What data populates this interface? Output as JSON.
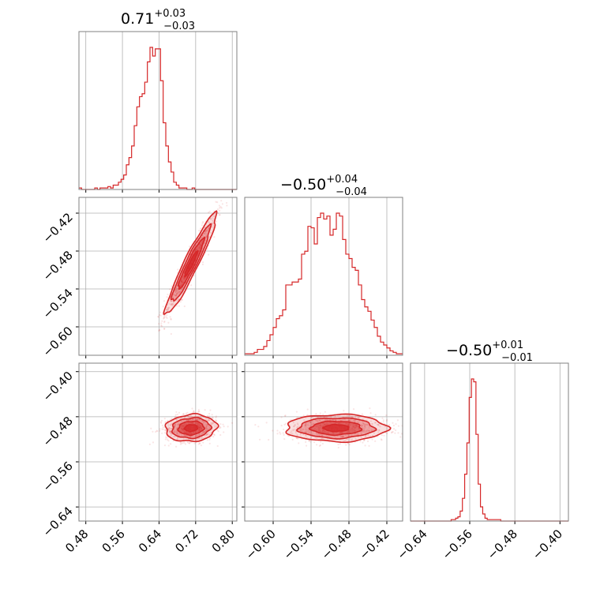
{
  "chart_data": {
    "type": "corner",
    "color": "#d62728",
    "grid": true,
    "parameters": [
      {
        "median": 0.71,
        "err_plus": 0.03,
        "err_minus": 0.03,
        "title_main": "0.71",
        "title_sup": "+0.03",
        "title_sub": "−0.03",
        "range": [
          0.465,
          0.81
        ],
        "ticks": [
          0.48,
          0.56,
          0.64,
          0.72,
          0.8
        ],
        "tick_labels": [
          "0.48",
          "0.56",
          "0.64",
          "0.72",
          "0.80"
        ],
        "histogram": {
          "start": 0.465,
          "bin_width": 0.00575,
          "heights": [
            0.01,
            0,
            0,
            0,
            0,
            0,
            0.01,
            0,
            0.01,
            0.01,
            0.01,
            0.02,
            0.01,
            0.03,
            0.03,
            0.05,
            0.07,
            0.1,
            0.17,
            0.22,
            0.3,
            0.44,
            0.57,
            0.64,
            0.66,
            0.74,
            0.88,
            0.98,
            0.92,
            0.97,
            0.97,
            0.75,
            0.46,
            0.3,
            0.19,
            0.12,
            0.05,
            0.03,
            0.01,
            0.01,
            0.01,
            0,
            0,
            0.01,
            0,
            0,
            0,
            0,
            0,
            0,
            0,
            0,
            0,
            0,
            0,
            0,
            0,
            0,
            0,
            0
          ]
        }
      },
      {
        "median": -0.5,
        "err_plus": 0.04,
        "err_minus": 0.04,
        "title_main": "−0.50",
        "title_sup": "+0.04",
        "title_sub": "−0.04",
        "range": [
          -0.645,
          -0.395
        ],
        "ticks": [
          -0.6,
          -0.54,
          -0.48,
          -0.42
        ],
        "tick_labels": [
          "−0.60",
          "−0.54",
          "−0.48",
          "−0.42"
        ],
        "histogram": {
          "start": -0.645,
          "bin_width": 0.005,
          "heights": [
            0.01,
            0.01,
            0.01,
            0.02,
            0.04,
            0.04,
            0.06,
            0.1,
            0.14,
            0.19,
            0.25,
            0.27,
            0.31,
            0.48,
            0.48,
            0.5,
            0.5,
            0.52,
            0.69,
            0.71,
            0.88,
            0.87,
            0.76,
            0.94,
            0.97,
            0.93,
            0.95,
            0.82,
            0.86,
            0.97,
            0.95,
            0.79,
            0.69,
            0.66,
            0.6,
            0.58,
            0.48,
            0.38,
            0.33,
            0.3,
            0.24,
            0.19,
            0.13,
            0.09,
            0.07,
            0.05,
            0.03,
            0.02,
            0.01,
            0.01
          ]
        }
      },
      {
        "median": -0.5,
        "err_plus": 0.01,
        "err_minus": 0.01,
        "title_main": "−0.50",
        "title_sup": "+0.01",
        "title_sub": "−0.01",
        "range": [
          -0.665,
          -0.385
        ],
        "ticks": [
          -0.64,
          -0.56,
          -0.48,
          -0.4
        ],
        "tick_labels": [
          "−0.64",
          "−0.56",
          "−0.48",
          "−0.40"
        ],
        "histogram": {
          "start": -0.665,
          "bin_width": 0.004,
          "heights": [
            0,
            0,
            0,
            0,
            0,
            0,
            0,
            0,
            0,
            0,
            0,
            0,
            0,
            0,
            0,
            0,
            0,
            0,
            0.01,
            0.01,
            0.02,
            0.03,
            0.07,
            0.16,
            0.33,
            0.55,
            0.87,
            1.0,
            0.98,
            0.61,
            0.26,
            0.1,
            0.05,
            0.02,
            0.01,
            0.01,
            0.01,
            0.01,
            0.01,
            0.01,
            0,
            0,
            0,
            0,
            0,
            0,
            0,
            0,
            0,
            0,
            0,
            0,
            0,
            0,
            0,
            0,
            0,
            0,
            0,
            0,
            0,
            0,
            0,
            0,
            0,
            0,
            0,
            0,
            0,
            0
          ]
        }
      }
    ],
    "pairs": [
      {
        "x_param": 0,
        "y_param": 1,
        "mean": [
          0.71,
          -0.5
        ],
        "std": [
          0.028,
          0.04
        ],
        "correlation": 0.95,
        "contour_levels_sigma": [
          0.5,
          1.0,
          1.5,
          2.0
        ]
      },
      {
        "x_param": 0,
        "y_param": 2,
        "mean": [
          0.71,
          -0.5
        ],
        "std": [
          0.028,
          0.012
        ],
        "correlation": 0.1,
        "contour_levels_sigma": [
          0.5,
          1.0,
          1.5,
          2.0
        ]
      },
      {
        "x_param": 1,
        "y_param": 2,
        "mean": [
          -0.5,
          -0.5
        ],
        "std": [
          0.04,
          0.012
        ],
        "correlation": 0.0,
        "contour_levels_sigma": [
          0.5,
          1.0,
          1.5,
          2.0
        ]
      }
    ]
  }
}
